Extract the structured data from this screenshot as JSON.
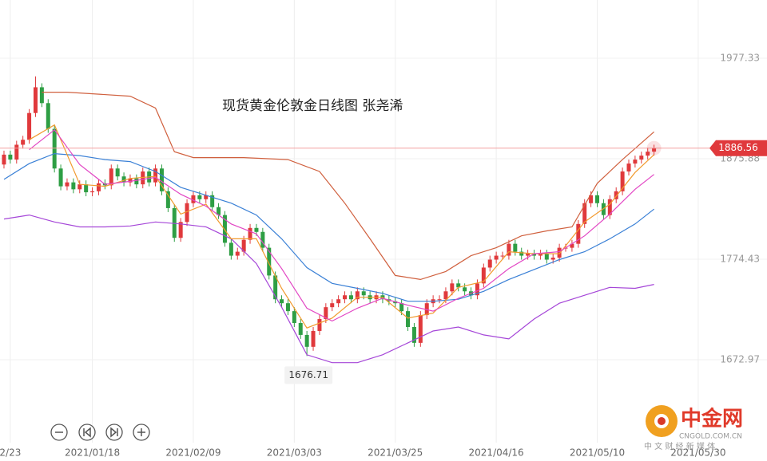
{
  "chart_data": {
    "type": "candlestick",
    "title": "现货黄金伦敦金日线图 张尧浠",
    "up_color": "#e0393c",
    "down_color": "#2e9e44",
    "open": [
      1870,
      1880,
      1875,
      1890,
      1895,
      1922,
      1948,
      1932,
      1906,
      1866,
      1848,
      1852,
      1845,
      1850,
      1842,
      1843,
      1851,
      1849,
      1866,
      1858,
      1852,
      1856,
      1850,
      1863,
      1852,
      1866,
      1843,
      1826,
      1796,
      1812,
      1831,
      1839,
      1835,
      1839,
      1827,
      1819,
      1791,
      1778,
      1782,
      1794,
      1806,
      1802,
      1786,
      1758,
      1734,
      1730,
      1722,
      1710,
      1698,
      1686,
      1702,
      1714,
      1726,
      1730,
      1734,
      1738,
      1734,
      1742,
      1738,
      1734,
      1738,
      1734,
      1732,
      1730,
      1722,
      1706,
      1690,
      1718,
      1730,
      1734,
      1734,
      1742,
      1750,
      1746,
      1742,
      1738,
      1750,
      1766,
      1774,
      1778,
      1778,
      1790,
      1782,
      1778,
      1780,
      1778,
      1780,
      1774,
      1776,
      1786,
      1786,
      1790,
      1810,
      1831,
      1839,
      1831,
      1819,
      1835,
      1843,
      1863,
      1871,
      1875,
      1879,
      1883
    ],
    "high": [
      1884,
      1884,
      1894,
      1899,
      1926,
      1959,
      1952,
      1936,
      1910,
      1870,
      1856,
      1856,
      1854,
      1854,
      1847,
      1855,
      1855,
      1870,
      1870,
      1862,
      1860,
      1860,
      1867,
      1867,
      1870,
      1870,
      1847,
      1830,
      1816,
      1835,
      1843,
      1843,
      1843,
      1843,
      1831,
      1823,
      1795,
      1786,
      1798,
      1810,
      1810,
      1806,
      1790,
      1762,
      1738,
      1734,
      1726,
      1714,
      1702,
      1706,
      1718,
      1730,
      1734,
      1738,
      1742,
      1742,
      1746,
      1746,
      1742,
      1742,
      1742,
      1738,
      1736,
      1734,
      1726,
      1710,
      1722,
      1734,
      1738,
      1738,
      1746,
      1754,
      1754,
      1750,
      1746,
      1754,
      1770,
      1778,
      1782,
      1782,
      1794,
      1794,
      1786,
      1784,
      1784,
      1784,
      1784,
      1780,
      1790,
      1790,
      1794,
      1814,
      1835,
      1843,
      1843,
      1835,
      1839,
      1847,
      1867,
      1875,
      1879,
      1883,
      1887,
      1890
    ],
    "low": [
      1866,
      1871,
      1871,
      1886,
      1891,
      1918,
      1928,
      1902,
      1862,
      1844,
      1844,
      1841,
      1841,
      1838,
      1838,
      1839,
      1845,
      1845,
      1854,
      1848,
      1848,
      1846,
      1846,
      1848,
      1848,
      1839,
      1822,
      1792,
      1792,
      1808,
      1827,
      1831,
      1831,
      1823,
      1815,
      1787,
      1774,
      1774,
      1778,
      1790,
      1798,
      1782,
      1754,
      1730,
      1726,
      1718,
      1706,
      1694,
      1676.71,
      1682,
      1698,
      1710,
      1722,
      1726,
      1730,
      1730,
      1730,
      1734,
      1730,
      1730,
      1730,
      1728,
      1726,
      1718,
      1702,
      1686,
      1686,
      1714,
      1726,
      1730,
      1730,
      1738,
      1742,
      1738,
      1734,
      1734,
      1746,
      1762,
      1770,
      1774,
      1774,
      1778,
      1774,
      1774,
      1774,
      1774,
      1770,
      1770,
      1772,
      1782,
      1782,
      1786,
      1806,
      1827,
      1827,
      1815,
      1815,
      1831,
      1839,
      1859,
      1867,
      1871,
      1875,
      1879
    ],
    "close": [
      1880,
      1875,
      1890,
      1895,
      1922,
      1948,
      1932,
      1906,
      1866,
      1848,
      1852,
      1845,
      1850,
      1842,
      1843,
      1851,
      1849,
      1866,
      1858,
      1852,
      1856,
      1850,
      1863,
      1852,
      1866,
      1843,
      1826,
      1796,
      1812,
      1831,
      1839,
      1835,
      1839,
      1827,
      1819,
      1791,
      1778,
      1782,
      1794,
      1806,
      1802,
      1786,
      1758,
      1734,
      1730,
      1722,
      1710,
      1698,
      1686,
      1702,
      1714,
      1726,
      1730,
      1734,
      1738,
      1734,
      1742,
      1738,
      1734,
      1738,
      1734,
      1732,
      1730,
      1722,
      1706,
      1690,
      1718,
      1730,
      1734,
      1734,
      1742,
      1750,
      1746,
      1742,
      1738,
      1750,
      1766,
      1774,
      1778,
      1778,
      1790,
      1782,
      1778,
      1780,
      1778,
      1780,
      1774,
      1776,
      1786,
      1786,
      1790,
      1810,
      1831,
      1839,
      1831,
      1819,
      1835,
      1843,
      1863,
      1871,
      1875,
      1879,
      1883,
      1886.56
    ],
    "lines": [
      {
        "color": "#d0603e",
        "x": [
          6,
          10,
          20,
          24,
          27,
          30,
          38,
          45,
          50,
          54,
          58,
          62,
          66,
          70,
          74,
          78,
          82,
          86,
          90,
          94,
          98,
          103
        ],
        "values": [
          1943,
          1943,
          1939,
          1927,
          1883,
          1877,
          1877,
          1875,
          1863,
          1831,
          1795,
          1758,
          1754,
          1762,
          1778,
          1786,
          1798,
          1803,
          1807,
          1851,
          1875,
          1903
        ]
      },
      {
        "color": "#3a80d6",
        "x": [
          0,
          4,
          8,
          12,
          16,
          20,
          24,
          28,
          32,
          36,
          40,
          44,
          48,
          52,
          56,
          60,
          64,
          68,
          72,
          76,
          80,
          84,
          88,
          92,
          96,
          100,
          103
        ],
        "values": [
          1855,
          1871,
          1881,
          1879,
          1875,
          1873,
          1863,
          1847,
          1839,
          1831,
          1819,
          1795,
          1766,
          1750,
          1745,
          1740,
          1732,
          1732,
          1734,
          1742,
          1754,
          1764,
          1774,
          1782,
          1795,
          1810,
          1825
        ]
      },
      {
        "color": "#a546d8",
        "x": [
          0,
          4,
          8,
          12,
          16,
          20,
          24,
          28,
          32,
          36,
          40,
          44,
          48,
          52,
          56,
          60,
          64,
          68,
          72,
          76,
          80,
          84,
          88,
          92,
          96,
          100,
          103
        ],
        "values": [
          1815,
          1819,
          1812,
          1807,
          1807,
          1808,
          1812,
          1810,
          1807,
          1795,
          1770,
          1726,
          1678,
          1670,
          1670,
          1678,
          1690,
          1702,
          1706,
          1698,
          1694,
          1714,
          1730,
          1738,
          1746,
          1745,
          1749
        ]
      },
      {
        "color": "#f29a2e",
        "x": [
          4,
          8,
          12,
          16,
          20,
          24,
          28,
          32,
          36,
          40,
          44,
          48,
          52,
          56,
          60,
          64,
          68,
          72,
          76,
          80,
          84,
          88,
          92,
          96,
          100,
          103
        ],
        "values": [
          1895,
          1910,
          1850,
          1848,
          1856,
          1858,
          1820,
          1830,
          1795,
          1795,
          1745,
          1705,
          1715,
          1736,
          1736,
          1715,
          1720,
          1746,
          1752,
          1782,
          1780,
          1780,
          1812,
          1830,
          1862,
          1880
        ]
      },
      {
        "color": "#e246c4",
        "x": [
          4,
          8,
          12,
          16,
          20,
          24,
          28,
          32,
          36,
          40,
          44,
          48,
          52,
          56,
          60,
          64,
          68,
          72,
          76,
          80,
          84,
          88,
          92,
          96,
          100,
          103
        ],
        "values": [
          1885,
          1905,
          1870,
          1850,
          1853,
          1857,
          1840,
          1828,
          1810,
          1800,
          1765,
          1725,
          1712,
          1725,
          1735,
          1728,
          1722,
          1735,
          1745,
          1765,
          1780,
          1782,
          1798,
          1820,
          1845,
          1860
        ]
      }
    ],
    "xlim": [
      -0.63,
      120.9
    ],
    "xticks": [
      {
        "value": 1,
        "label": "2/23"
      },
      {
        "value": 14,
        "label": "2021/01/18"
      },
      {
        "value": 30,
        "label": "2021/02/09"
      },
      {
        "value": 46,
        "label": "2021/03/03"
      },
      {
        "value": 62,
        "label": "2021/03/25"
      },
      {
        "value": 78,
        "label": "2021/04/16"
      },
      {
        "value": 94,
        "label": "2021/05/10"
      },
      {
        "value": 110,
        "label": "2021/05/30"
      }
    ],
    "ylim": [
      1589.24,
      2036.1
    ],
    "yticks": [
      1977.33,
      1875.88,
      1774.43,
      1672.97
    ],
    "grid": true
  },
  "logo": {
    "name": "中金网",
    "domain": "CNGOLD.COM.CN",
    "slogan": "中 文 财 经 新 媒 体"
  }
}
